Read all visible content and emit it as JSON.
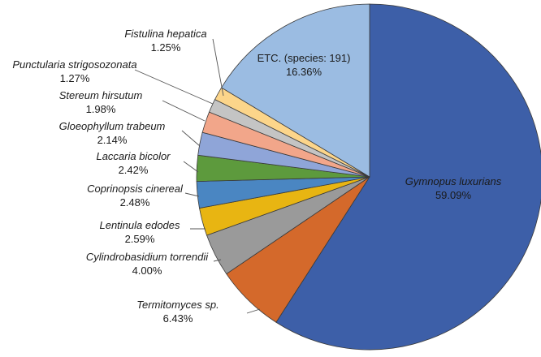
{
  "chart_data": {
    "type": "pie",
    "title": "",
    "slices": [
      {
        "name": "Gymnopus luxurians",
        "value": 59.09,
        "label": "59.09%",
        "color": "#3d5fa8"
      },
      {
        "name": "Termitomyces sp.",
        "value": 6.43,
        "label": "6.43%",
        "color": "#d4692b"
      },
      {
        "name": "Cylindrobasidium torrendii",
        "value": 4.0,
        "label": "4.00%",
        "color": "#9a9a9a"
      },
      {
        "name": "Lentinula edodes",
        "value": 2.59,
        "label": "2.59%",
        "color": "#e8b512"
      },
      {
        "name": "Coprinopsis cinereal",
        "value": 2.48,
        "label": "2.48%",
        "color": "#4a86c2"
      },
      {
        "name": "Laccaria bicolor",
        "value": 2.42,
        "label": "2.42%",
        "color": "#5d9a3d"
      },
      {
        "name": "Gloeophyllum trabeum",
        "value": 2.14,
        "label": "2.14%",
        "color": "#8fa5d8"
      },
      {
        "name": "Stereum hirsutum",
        "value": 1.98,
        "label": "1.98%",
        "color": "#f2a68a"
      },
      {
        "name": "Punctularia strigosozonata",
        "value": 1.27,
        "label": "1.27%",
        "color": "#c4c4c4"
      },
      {
        "name": "Fistulina hepatica",
        "value": 1.25,
        "label": "1.25%",
        "color": "#fcd58a"
      },
      {
        "name": "ETC. (species: 191)",
        "value": 16.36,
        "label": "16.36%",
        "color": "#9bbce2",
        "italic": false
      }
    ]
  }
}
